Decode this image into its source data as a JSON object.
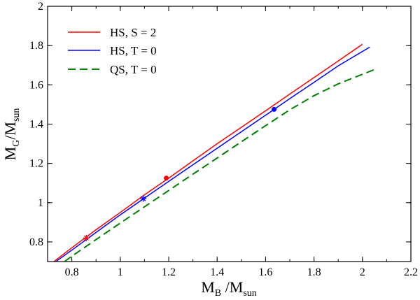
{
  "chart_data": {
    "type": "line",
    "title": "",
    "xlabel": {
      "main": "M",
      "sub1": "B",
      "sep": " /M",
      "sub2": "sun"
    },
    "ylabel": {
      "main": "M",
      "sub1": "G",
      "sep": "/M",
      "sub2": "sun"
    },
    "xlim": [
      0.7,
      2.2
    ],
    "ylim": [
      0.7,
      2.0
    ],
    "xticks": [
      0.8,
      1,
      1.2,
      1.4,
      1.6,
      1.8,
      2,
      2.2
    ],
    "xtick_labels": [
      "0.8",
      "1",
      "1.2",
      "1.4",
      "1.6",
      "1.8",
      "2",
      "2.2"
    ],
    "yticks": [
      0.8,
      1,
      1.2,
      1.4,
      1.6,
      1.8,
      2
    ],
    "ytick_labels": [
      "0.8",
      "1",
      "1.2",
      "1.4",
      "1.6",
      "1.8",
      "2"
    ],
    "grid": false,
    "legend_position": "top-left",
    "series": [
      {
        "name": "HS, S = 2",
        "color": "#ff0000",
        "dash": "solid",
        "x": [
          0.726,
          0.8,
          0.9,
          1.0,
          1.1,
          1.2,
          1.3,
          1.4,
          1.5,
          1.6,
          1.7,
          1.8,
          1.9,
          2.0
        ],
        "y": [
          0.7,
          0.77,
          0.862,
          0.95,
          1.04,
          1.125,
          1.213,
          1.3,
          1.384,
          1.468,
          1.553,
          1.637,
          1.722,
          1.807
        ]
      },
      {
        "name": "HS, T = 0",
        "color": "#0000ff",
        "dash": "solid",
        "x": [
          0.734,
          0.8,
          0.9,
          1.0,
          1.1,
          1.2,
          1.3,
          1.4,
          1.5,
          1.6,
          1.7,
          1.8,
          1.9,
          2.03
        ],
        "y": [
          0.7,
          0.758,
          0.848,
          0.938,
          1.023,
          1.108,
          1.193,
          1.277,
          1.361,
          1.445,
          1.53,
          1.613,
          1.697,
          1.792
        ]
      },
      {
        "name": "QS, T = 0",
        "color": "#008000",
        "dash": "dashed",
        "x": [
          0.77,
          0.8,
          0.9,
          1.0,
          1.1,
          1.2,
          1.3,
          1.4,
          1.5,
          1.6,
          1.7,
          1.8,
          1.9,
          2.05
        ],
        "y": [
          0.7,
          0.727,
          0.812,
          0.896,
          0.979,
          1.062,
          1.145,
          1.227,
          1.31,
          1.392,
          1.473,
          1.545,
          1.605,
          1.678
        ]
      }
    ],
    "markers": [
      {
        "series": "HS, S = 2",
        "symbol": "star",
        "x": 0.86,
        "y": 0.82,
        "color": "#ff0000"
      },
      {
        "series": "HS, S = 2",
        "symbol": "dot",
        "x": 1.19,
        "y": 1.125,
        "color": "#ff0000"
      },
      {
        "series": "HS, T = 0",
        "symbol": "star",
        "x": 1.095,
        "y": 1.02,
        "color": "#0000ff"
      },
      {
        "series": "HS, T = 0",
        "symbol": "dot",
        "x": 1.635,
        "y": 1.475,
        "color": "#0000ff"
      }
    ]
  }
}
